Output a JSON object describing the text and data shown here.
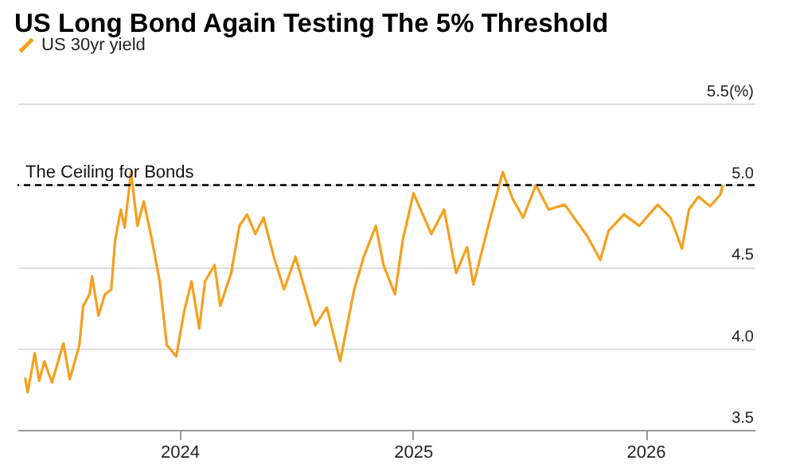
{
  "chart_data": {
    "type": "line",
    "title": "US Long Bond Again Testing The 5% Threshold",
    "x": [
      "2023-05-04",
      "2023-05-08",
      "2023-05-19",
      "2023-05-26",
      "2023-06-03",
      "2023-06-15",
      "2023-07-03",
      "2023-07-13",
      "2023-07-28",
      "2023-08-03",
      "2023-08-13",
      "2023-08-17",
      "2023-08-27",
      "2023-09-06",
      "2023-09-16",
      "2023-09-22",
      "2023-10-01",
      "2023-10-07",
      "2023-10-17",
      "2023-10-27",
      "2023-11-06",
      "2023-11-18",
      "2023-12-01",
      "2023-12-12",
      "2023-12-27",
      "2024-01-08",
      "2024-01-20",
      "2024-02-01",
      "2024-02-10",
      "2024-02-25",
      "2024-03-05",
      "2024-03-22",
      "2024-04-04",
      "2024-04-16",
      "2024-04-29",
      "2024-05-12",
      "2024-05-28",
      "2024-06-13",
      "2024-07-01",
      "2024-08-01",
      "2024-08-19",
      "2024-09-09",
      "2024-10-01",
      "2024-10-16",
      "2024-11-04",
      "2024-11-16",
      "2024-12-04",
      "2024-12-16",
      "2025-01-02",
      "2025-01-30",
      "2025-02-19",
      "2025-03-10",
      "2025-03-27",
      "2025-04-06",
      "2025-05-04",
      "2025-05-22",
      "2025-06-06",
      "2025-06-23",
      "2025-07-13",
      "2025-08-02",
      "2025-08-27",
      "2025-10-01",
      "2025-10-22",
      "2025-11-04",
      "2025-11-28",
      "2025-12-22",
      "2026-01-20",
      "2026-02-09",
      "2026-02-27",
      "2026-03-10",
      "2026-03-25",
      "2026-04-12",
      "2026-04-28",
      "2026-05-02"
    ],
    "series": [
      {
        "name": "US 30yr yield",
        "color": "#f5a01f",
        "values": [
          3.82,
          3.73,
          3.97,
          3.8,
          3.92,
          3.79,
          4.03,
          3.81,
          4.02,
          4.26,
          4.33,
          4.44,
          4.2,
          4.33,
          4.36,
          4.66,
          4.85,
          4.74,
          5.08,
          4.75,
          4.9,
          4.68,
          4.41,
          4.02,
          3.95,
          4.22,
          4.41,
          4.12,
          4.41,
          4.51,
          4.26,
          4.46,
          4.75,
          4.82,
          4.7,
          4.8,
          4.56,
          4.36,
          4.56,
          4.14,
          4.25,
          3.92,
          4.36,
          4.56,
          4.75,
          4.51,
          4.33,
          4.66,
          4.95,
          4.7,
          4.85,
          4.46,
          4.62,
          4.39,
          4.82,
          5.08,
          4.92,
          4.8,
          5.0,
          4.85,
          4.88,
          4.69,
          4.54,
          4.72,
          4.82,
          4.75,
          4.88,
          4.8,
          4.61,
          4.85,
          4.93,
          4.87,
          4.94,
          5.0
        ]
      }
    ],
    "xlim": [
      "2023-04-22",
      "2026-06-21"
    ],
    "xticks": [
      {
        "value": "2024-01-01",
        "label": "2024"
      },
      {
        "value": "2025-01-01",
        "label": "2025"
      },
      {
        "value": "2026-01-01",
        "label": "2026"
      }
    ],
    "ylim": [
      3.5,
      5.5
    ],
    "yticks": [
      {
        "value": 3.5,
        "label": "3.5"
      },
      {
        "value": 4.0,
        "label": "4.0"
      },
      {
        "value": 4.5,
        "label": "4.5"
      },
      {
        "value": 5.0,
        "label": "5.0"
      },
      {
        "value": 5.5,
        "label": "5.5(%)"
      }
    ],
    "ref_lines": [
      {
        "axis": "y",
        "value": 5.0,
        "label": "The Ceiling for Bonds",
        "color": "#000000",
        "line_style": "dashed"
      }
    ],
    "grid": "y",
    "legend": "top left"
  }
}
